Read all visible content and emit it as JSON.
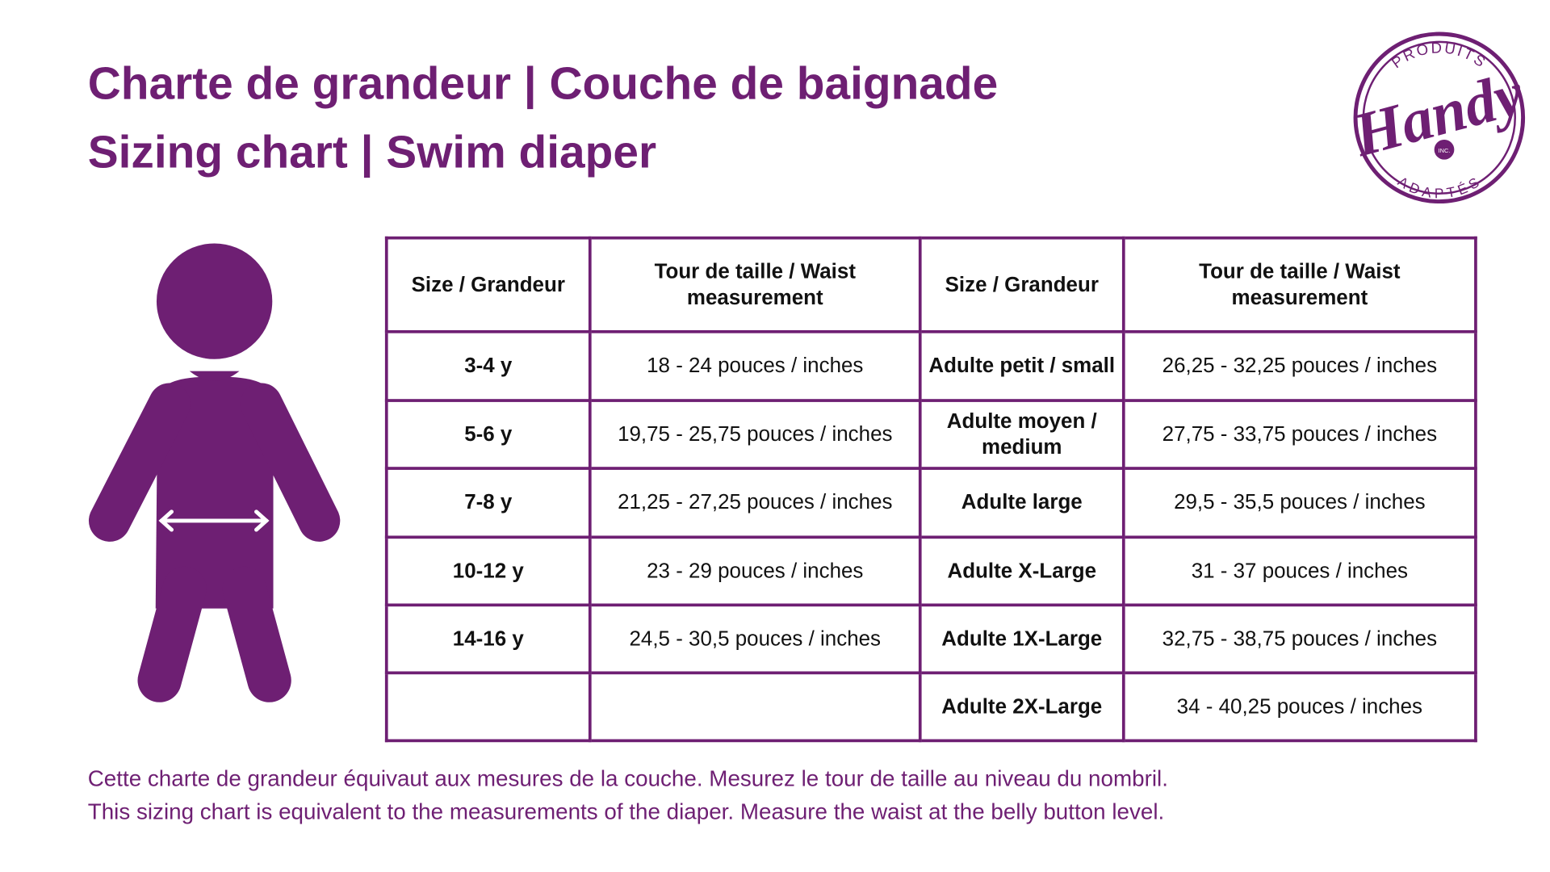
{
  "header": {
    "title_fr": "Charte de grandeur | Couche de baignade",
    "title_en": "Sizing chart | Swim diaper"
  },
  "logo": {
    "top": "PRODUITS",
    "main": "Handy",
    "inc": "INC.",
    "bottom": "ADAPTÉS"
  },
  "table": {
    "headers": [
      "Size / Grandeur",
      "Tour de taille / Waist measurement"
    ],
    "left_rows": [
      [
        "3-4 y",
        "18 - 24 pouces / inches"
      ],
      [
        "5-6 y",
        "19,75 - 25,75 pouces / inches"
      ],
      [
        "7-8 y",
        "21,25 - 27,25 pouces / inches"
      ],
      [
        "10-12 y",
        "23 - 29 pouces / inches"
      ],
      [
        "14-16 y",
        "24,5 - 30,5 pouces / inches"
      ]
    ],
    "right_rows": [
      [
        "Adulte petit / small",
        "26,25 - 32,25 pouces / inches"
      ],
      [
        "Adulte moyen / medium",
        "27,75 - 33,75 pouces / inches"
      ],
      [
        "Adulte large",
        "29,5 - 35,5 pouces / inches"
      ],
      [
        "Adulte X-Large",
        "31 - 37 pouces / inches"
      ],
      [
        "Adulte 1X-Large",
        "32,75 - 38,75 pouces / inches"
      ],
      [
        "Adulte 2X-Large",
        "34 - 40,25 pouces / inches"
      ]
    ]
  },
  "footer": {
    "note_fr": "Cette charte de grandeur équivaut aux mesures de la couche. Mesurez le tour de taille au niveau du nombril.",
    "note_en": "This sizing chart is equivalent to the measurements of the diaper. Measure the waist at the belly button level."
  }
}
